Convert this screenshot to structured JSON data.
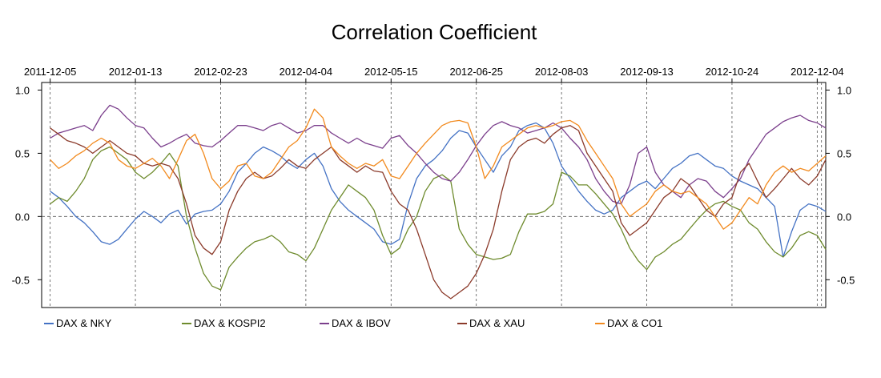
{
  "chart_data": {
    "type": "line",
    "title": "Correlation Coefficient",
    "xlabel": "",
    "ylabel": "",
    "x_tick_labels": [
      "2011-12-05",
      "2012-01-13",
      "2012-02-23",
      "2012-04-04",
      "2012-05-15",
      "2012-06-25",
      "2012-08-03",
      "2012-09-13",
      "2012-10-24",
      "2012-12-04"
    ],
    "x_range": [
      -1,
      91
    ],
    "x_ticks_at": [
      0,
      10,
      20,
      30,
      40,
      50,
      60,
      70,
      80,
      90
    ],
    "x_end": 90.5,
    "y_ticks": [
      1.0,
      0.5,
      0.0,
      -0.5
    ],
    "y_tick_labels": [
      "1.0",
      "0.5",
      "0.0",
      "-0.5"
    ],
    "ylim": [
      -0.72,
      1.06
    ],
    "zero_line": true,
    "legend_position": "bottom",
    "grid": "dashed vertical lines at each date tick and a dashed horizontal line at 0.0",
    "series": [
      {
        "name": "DAX  &  NKY",
        "color": "#4472C4",
        "values": [
          0.2,
          0.15,
          0.08,
          0.0,
          -0.05,
          -0.12,
          -0.2,
          -0.22,
          -0.18,
          -0.1,
          -0.02,
          0.04,
          0.0,
          -0.05,
          0.02,
          0.05,
          -0.06,
          0.02,
          0.04,
          0.05,
          0.1,
          0.2,
          0.35,
          0.42,
          0.5,
          0.55,
          0.52,
          0.48,
          0.42,
          0.38,
          0.45,
          0.5,
          0.4,
          0.22,
          0.12,
          0.05,
          0.0,
          -0.05,
          -0.1,
          -0.2,
          -0.22,
          -0.18,
          0.1,
          0.3,
          0.4,
          0.45,
          0.52,
          0.62,
          0.68,
          0.66,
          0.55,
          0.45,
          0.35,
          0.48,
          0.55,
          0.68,
          0.72,
          0.74,
          0.7,
          0.58,
          0.4,
          0.3,
          0.2,
          0.12,
          0.05,
          0.02,
          0.05,
          0.15,
          0.2,
          0.25,
          0.28,
          0.22,
          0.3,
          0.38,
          0.42,
          0.48,
          0.5,
          0.45,
          0.4,
          0.38,
          0.32,
          0.28,
          0.25,
          0.22,
          0.15,
          0.08,
          -0.32,
          -0.12,
          0.05,
          0.1,
          0.08,
          0.04
        ]
      },
      {
        "name": "DAX  &  KOSPI2",
        "color": "#6E8B2D",
        "values": [
          0.1,
          0.15,
          0.12,
          0.2,
          0.3,
          0.45,
          0.52,
          0.55,
          0.5,
          0.45,
          0.35,
          0.3,
          0.35,
          0.42,
          0.5,
          0.4,
          0.0,
          -0.25,
          -0.45,
          -0.55,
          -0.58,
          -0.4,
          -0.32,
          -0.25,
          -0.2,
          -0.18,
          -0.15,
          -0.2,
          -0.28,
          -0.3,
          -0.35,
          -0.25,
          -0.1,
          0.05,
          0.15,
          0.25,
          0.2,
          0.15,
          0.05,
          -0.15,
          -0.3,
          -0.25,
          -0.1,
          0.0,
          0.2,
          0.3,
          0.33,
          0.28,
          -0.1,
          -0.22,
          -0.3,
          -0.32,
          -0.34,
          -0.33,
          -0.3,
          -0.12,
          0.02,
          0.02,
          0.04,
          0.1,
          0.35,
          0.32,
          0.25,
          0.25,
          0.18,
          0.1,
          0.02,
          -0.1,
          -0.25,
          -0.35,
          -0.42,
          -0.32,
          -0.28,
          -0.22,
          -0.18,
          -0.1,
          -0.02,
          0.05,
          0.1,
          0.12,
          0.08,
          0.05,
          -0.05,
          -0.1,
          -0.2,
          -0.28,
          -0.32,
          -0.25,
          -0.15,
          -0.12,
          -0.15,
          -0.26
        ]
      },
      {
        "name": "DAX  &  IBOV",
        "color": "#7B3F8C",
        "values": [
          0.62,
          0.66,
          0.68,
          0.7,
          0.72,
          0.68,
          0.8,
          0.88,
          0.85,
          0.78,
          0.72,
          0.7,
          0.62,
          0.55,
          0.58,
          0.62,
          0.65,
          0.58,
          0.56,
          0.55,
          0.6,
          0.66,
          0.72,
          0.72,
          0.7,
          0.68,
          0.72,
          0.74,
          0.7,
          0.66,
          0.68,
          0.72,
          0.72,
          0.66,
          0.62,
          0.58,
          0.62,
          0.58,
          0.56,
          0.54,
          0.62,
          0.64,
          0.56,
          0.5,
          0.42,
          0.35,
          0.3,
          0.28,
          0.35,
          0.45,
          0.56,
          0.65,
          0.72,
          0.75,
          0.72,
          0.7,
          0.66,
          0.68,
          0.7,
          0.74,
          0.7,
          0.62,
          0.55,
          0.45,
          0.3,
          0.2,
          0.12,
          0.1,
          0.25,
          0.5,
          0.55,
          0.35,
          0.25,
          0.2,
          0.15,
          0.25,
          0.3,
          0.28,
          0.2,
          0.15,
          0.22,
          0.3,
          0.45,
          0.55,
          0.65,
          0.7,
          0.75,
          0.78,
          0.8,
          0.76,
          0.74,
          0.7
        ]
      },
      {
        "name": "DAX  &  XAU",
        "color": "#8B3A2A",
        "values": [
          0.7,
          0.65,
          0.6,
          0.58,
          0.55,
          0.5,
          0.55,
          0.6,
          0.55,
          0.5,
          0.48,
          0.42,
          0.4,
          0.42,
          0.4,
          0.3,
          0.1,
          -0.15,
          -0.25,
          -0.3,
          -0.2,
          0.05,
          0.2,
          0.3,
          0.35,
          0.3,
          0.32,
          0.38,
          0.45,
          0.4,
          0.38,
          0.45,
          0.5,
          0.55,
          0.45,
          0.4,
          0.35,
          0.4,
          0.36,
          0.35,
          0.2,
          0.1,
          0.05,
          -0.1,
          -0.3,
          -0.5,
          -0.6,
          -0.65,
          -0.6,
          -0.55,
          -0.45,
          -0.3,
          -0.1,
          0.2,
          0.45,
          0.55,
          0.6,
          0.62,
          0.58,
          0.65,
          0.7,
          0.72,
          0.68,
          0.5,
          0.4,
          0.3,
          0.2,
          -0.05,
          -0.15,
          -0.1,
          -0.05,
          0.05,
          0.15,
          0.2,
          0.3,
          0.25,
          0.15,
          0.05,
          0.0,
          0.1,
          0.15,
          0.35,
          0.42,
          0.28,
          0.15,
          0.22,
          0.3,
          0.38,
          0.3,
          0.25,
          0.32,
          0.45
        ]
      },
      {
        "name": "DAX  &  CO1",
        "color": "#F28A1E",
        "values": [
          0.45,
          0.38,
          0.42,
          0.48,
          0.52,
          0.58,
          0.62,
          0.58,
          0.45,
          0.4,
          0.38,
          0.42,
          0.46,
          0.4,
          0.3,
          0.45,
          0.6,
          0.65,
          0.5,
          0.3,
          0.22,
          0.28,
          0.4,
          0.42,
          0.32,
          0.3,
          0.35,
          0.45,
          0.55,
          0.6,
          0.7,
          0.85,
          0.78,
          0.55,
          0.48,
          0.42,
          0.38,
          0.42,
          0.4,
          0.45,
          0.32,
          0.3,
          0.4,
          0.5,
          0.58,
          0.65,
          0.72,
          0.75,
          0.76,
          0.74,
          0.55,
          0.3,
          0.4,
          0.55,
          0.6,
          0.65,
          0.7,
          0.72,
          0.7,
          0.72,
          0.75,
          0.76,
          0.72,
          0.6,
          0.5,
          0.4,
          0.3,
          0.1,
          0.0,
          0.05,
          0.1,
          0.2,
          0.25,
          0.2,
          0.18,
          0.2,
          0.15,
          0.1,
          0.0,
          -0.1,
          -0.05,
          0.05,
          0.15,
          0.1,
          0.25,
          0.35,
          0.4,
          0.35,
          0.38,
          0.36,
          0.42,
          0.48
        ]
      }
    ]
  }
}
